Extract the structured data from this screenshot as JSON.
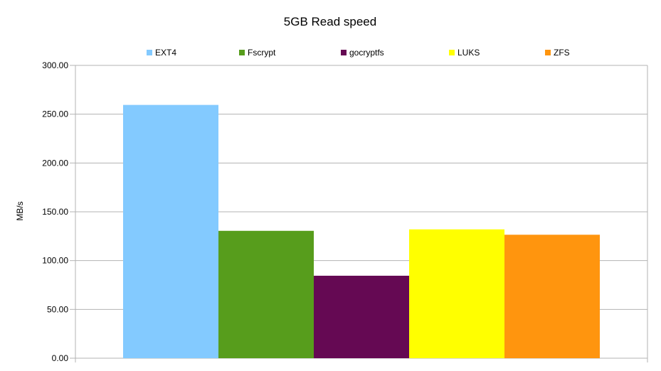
{
  "chart_data": {
    "type": "bar",
    "title": "5GB Read speed",
    "xlabel": "",
    "ylabel": "MB/s",
    "ylim": [
      0,
      300
    ],
    "yticks": [
      "0.00",
      "50.00",
      "100.00",
      "150.00",
      "200.00",
      "250.00",
      "300.00"
    ],
    "grid": true,
    "legend_position": "top",
    "categories": [
      ""
    ],
    "series": [
      {
        "name": "EXT4",
        "values": [
          259.5
        ],
        "color": "#83caff"
      },
      {
        "name": "Fscrypt",
        "values": [
          130.5
        ],
        "color": "#579d1c"
      },
      {
        "name": "gocryptfs",
        "values": [
          84.5
        ],
        "color": "#650953"
      },
      {
        "name": "LUKS",
        "values": [
          132.0
        ],
        "color": "#ffff00"
      },
      {
        "name": "ZFS",
        "values": [
          126.5
        ],
        "color": "#ff950e"
      }
    ]
  }
}
